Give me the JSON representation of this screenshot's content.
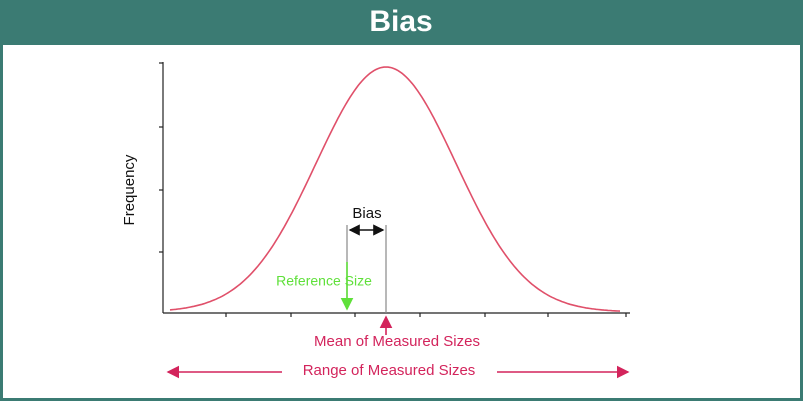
{
  "header": {
    "title": "Bias"
  },
  "diagram": {
    "y_axis_label": "Frequency",
    "bias_label": "Bias",
    "reference_label": "Reference Size",
    "mean_label": "Mean of Measured Sizes",
    "range_label": "Range of Measured Sizes"
  }
}
